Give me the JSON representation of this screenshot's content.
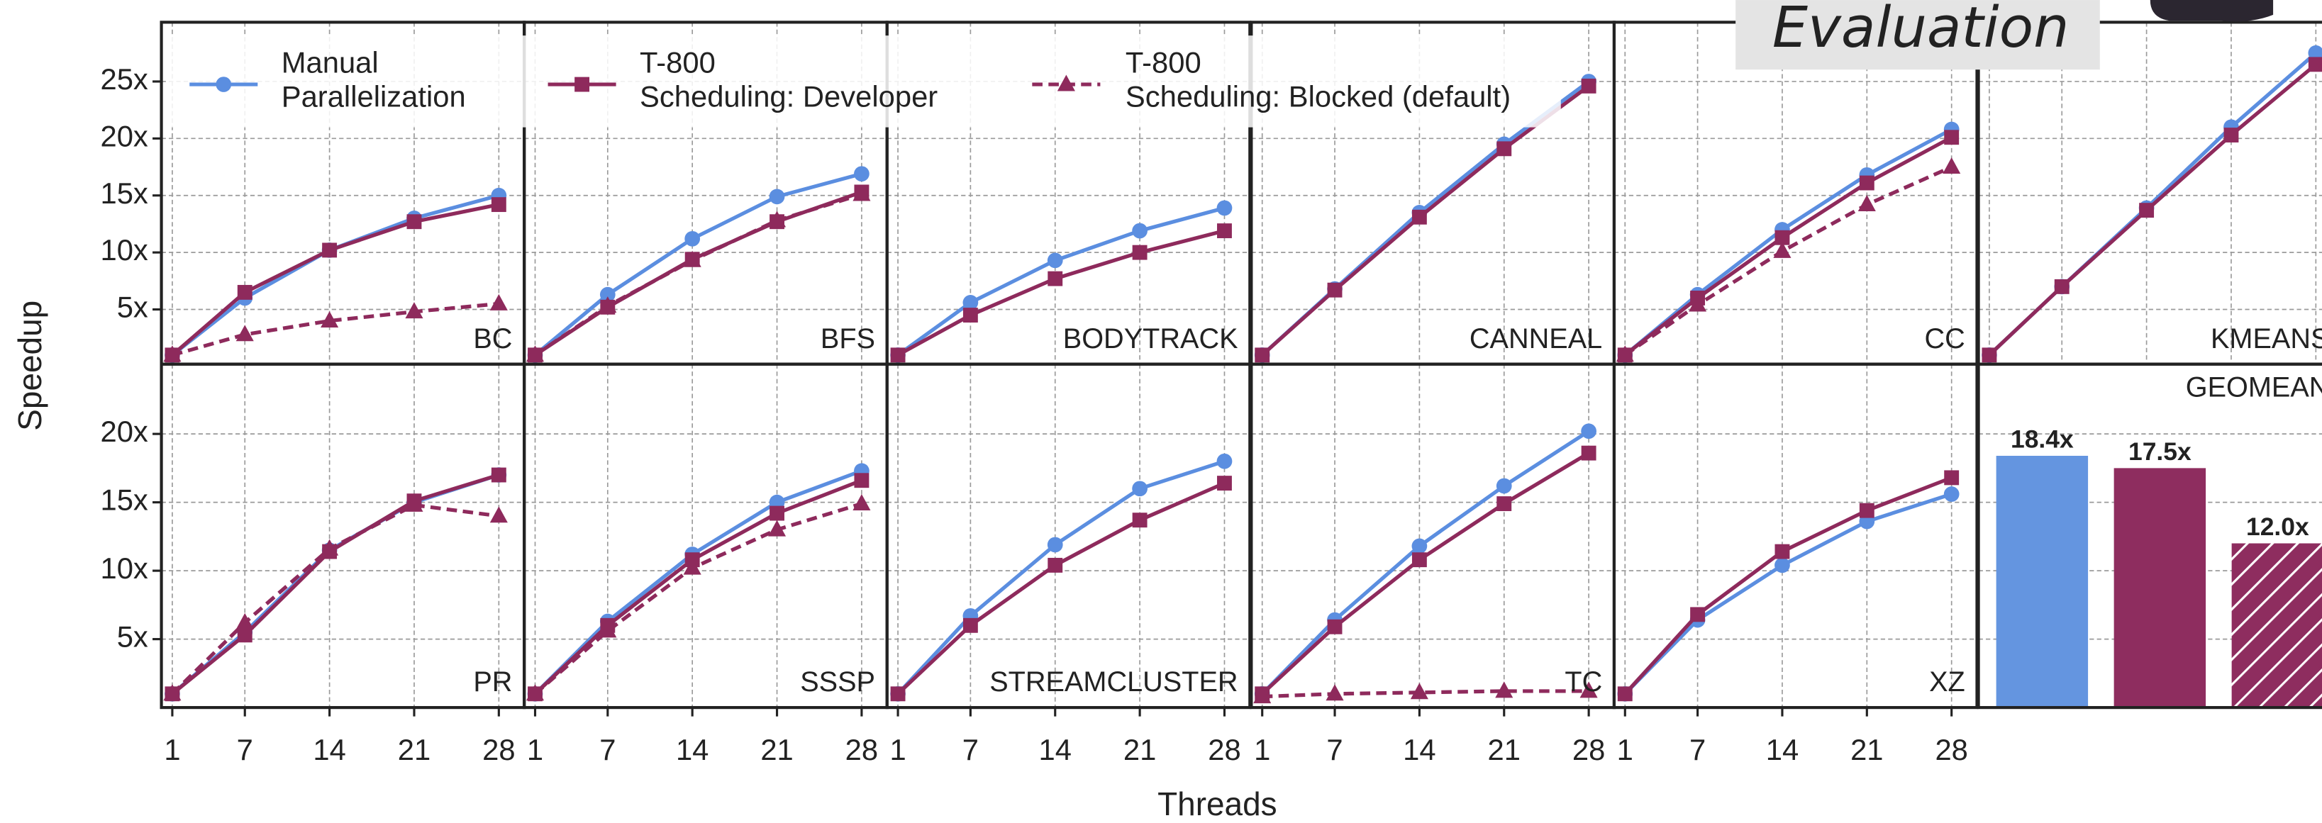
{
  "overlay_title": "Evaluation",
  "ylabel": "Speedup",
  "xlabel": "Threads",
  "chart_data": [
    {
      "type": "line",
      "title": "BC",
      "x": [
        1,
        7,
        14,
        21,
        28
      ],
      "xlim": [
        0.1,
        30.1
      ],
      "ylim": [
        0.2,
        30.2
      ],
      "xticks": [
        1,
        7,
        14,
        21,
        28
      ],
      "yticks": [
        {
          "value": 5,
          "label": "5x"
        },
        {
          "value": 10,
          "label": "10x"
        },
        {
          "value": 15,
          "label": "15x"
        },
        {
          "value": 20,
          "label": "20x"
        },
        {
          "value": 25,
          "label": "25x"
        }
      ],
      "grid": true,
      "series": [
        {
          "name": "Manual\nParallelization",
          "color": "#5b8ee0",
          "marker": "circle",
          "linestyle": "solid",
          "values": [
            1,
            6,
            10.2,
            13,
            15
          ]
        },
        {
          "name": "T-800\nScheduling: Developer",
          "color": "#8e2a5c",
          "marker": "square",
          "linestyle": "solid",
          "values": [
            1,
            6.5,
            10.2,
            12.7,
            14.2
          ]
        },
        {
          "name": "T-800\nScheduling: Blocked (default)",
          "color": "#8e2a5c",
          "marker": "triangle",
          "linestyle": "dashed",
          "values": [
            1,
            2.8,
            4,
            4.8,
            5.5
          ]
        }
      ]
    },
    {
      "type": "line",
      "title": "BFS",
      "x": [
        1,
        7,
        14,
        21,
        28
      ],
      "xlim": [
        0.1,
        30.1
      ],
      "ylim": [
        0.2,
        30.2
      ],
      "xticks": [
        1,
        7,
        14,
        21,
        28
      ],
      "yticks": [
        5,
        10,
        15,
        20,
        25
      ],
      "grid": true,
      "series": [
        {
          "name": "Manual\nParallelization",
          "color": "#5b8ee0",
          "marker": "circle",
          "linestyle": "solid",
          "values": [
            1,
            6.3,
            11.2,
            14.9,
            16.9
          ]
        },
        {
          "name": "T-800\nScheduling: Developer",
          "color": "#8e2a5c",
          "marker": "square",
          "linestyle": "solid",
          "values": [
            1,
            5.2,
            9.4,
            12.7,
            15.3
          ]
        },
        {
          "name": "T-800\nScheduling: Blocked (default)",
          "color": "#8e2a5c",
          "marker": "triangle",
          "linestyle": "dashed",
          "values": [
            1,
            5.3,
            9.3,
            12.8,
            15.1
          ]
        }
      ]
    },
    {
      "type": "line",
      "title": "BODYTRACK",
      "x": [
        1,
        7,
        14,
        21,
        28
      ],
      "xlim": [
        0.1,
        30.1
      ],
      "ylim": [
        0.2,
        30.2
      ],
      "xticks": [
        1,
        7,
        14,
        21,
        28
      ],
      "yticks": [
        5,
        10,
        15,
        20,
        25
      ],
      "grid": true,
      "series": [
        {
          "name": "Manual\nParallelization",
          "color": "#5b8ee0",
          "marker": "circle",
          "linestyle": "solid",
          "values": [
            1,
            5.6,
            9.3,
            11.9,
            13.9
          ]
        },
        {
          "name": "T-800\nScheduling: Developer",
          "color": "#8e2a5c",
          "marker": "square",
          "linestyle": "solid",
          "values": [
            1,
            4.5,
            7.7,
            10,
            11.9
          ]
        }
      ]
    },
    {
      "type": "line",
      "title": "CANNEAL",
      "x": [
        1,
        7,
        14,
        21,
        28
      ],
      "xlim": [
        0.1,
        30.1
      ],
      "ylim": [
        0.2,
        30.2
      ],
      "xticks": [
        1,
        7,
        14,
        21,
        28
      ],
      "yticks": [
        5,
        10,
        15,
        20,
        25
      ],
      "grid": true,
      "series": [
        {
          "name": "Manual\nParallelization",
          "color": "#5b8ee0",
          "marker": "circle",
          "linestyle": "solid",
          "values": [
            1,
            6.8,
            13.5,
            19.5,
            25
          ]
        },
        {
          "name": "T-800\nScheduling: Developer",
          "color": "#8e2a5c",
          "marker": "square",
          "linestyle": "solid",
          "values": [
            1,
            6.7,
            13.1,
            19.1,
            24.6
          ]
        }
      ]
    },
    {
      "type": "line",
      "title": "CC",
      "x": [
        1,
        7,
        14,
        21,
        28
      ],
      "xlim": [
        0.1,
        30.1
      ],
      "ylim": [
        0.2,
        30.2
      ],
      "xticks": [
        1,
        7,
        14,
        21,
        28
      ],
      "yticks": [
        5,
        10,
        15,
        20,
        25
      ],
      "grid": true,
      "series": [
        {
          "name": "Manual\nParallelization",
          "color": "#5b8ee0",
          "marker": "circle",
          "linestyle": "solid",
          "values": [
            1,
            6.3,
            12,
            16.8,
            20.8
          ]
        },
        {
          "name": "T-800\nScheduling: Developer",
          "color": "#8e2a5c",
          "marker": "square",
          "linestyle": "solid",
          "values": [
            1,
            6,
            11.3,
            16.1,
            20.1
          ]
        },
        {
          "name": "T-800\nScheduling: Blocked (default)",
          "color": "#8e2a5c",
          "marker": "triangle",
          "linestyle": "dashed",
          "values": [
            1,
            5.4,
            10.1,
            14.2,
            17.5
          ]
        }
      ]
    },
    {
      "type": "line",
      "title": "KMEANS",
      "x": [
        1,
        7,
        14,
        21,
        28
      ],
      "xlim": [
        0.1,
        30.1
      ],
      "ylim": [
        0.2,
        30.2
      ],
      "xticks": [
        1,
        7,
        14,
        21,
        28
      ],
      "yticks": [
        5,
        10,
        15,
        20,
        25
      ],
      "grid": true,
      "series": [
        {
          "name": "Manual\nParallelization",
          "color": "#5b8ee0",
          "marker": "circle",
          "linestyle": "solid",
          "values": [
            1,
            7,
            13.9,
            21,
            27.5
          ]
        },
        {
          "name": "T-800\nScheduling: Developer",
          "color": "#8e2a5c",
          "marker": "square",
          "linestyle": "solid",
          "values": [
            1,
            7,
            13.7,
            20.3,
            26.5
          ]
        }
      ]
    },
    {
      "type": "line",
      "title": "PR",
      "x": [
        1,
        7,
        14,
        21,
        28
      ],
      "xlim": [
        0.1,
        30.1
      ],
      "ylim": [
        0,
        25.1
      ],
      "xticks": [
        1,
        7,
        14,
        21,
        28
      ],
      "yticks": [
        {
          "value": 5,
          "label": "5x"
        },
        {
          "value": 10,
          "label": "10x"
        },
        {
          "value": 15,
          "label": "15x"
        },
        {
          "value": 20,
          "label": "20x"
        }
      ],
      "grid": true,
      "series": [
        {
          "name": "Manual\nParallelization",
          "color": "#5b8ee0",
          "marker": "circle",
          "linestyle": "solid",
          "values": [
            1,
            5.5,
            11.5,
            15,
            17
          ]
        },
        {
          "name": "T-800\nScheduling: Developer",
          "color": "#8e2a5c",
          "marker": "square",
          "linestyle": "solid",
          "values": [
            1,
            5.3,
            11.4,
            15.1,
            17
          ]
        },
        {
          "name": "T-800\nScheduling: Blocked (default)",
          "color": "#8e2a5c",
          "marker": "triangle",
          "linestyle": "dashed",
          "values": [
            1,
            6.2,
            11.6,
            14.8,
            14
          ]
        }
      ]
    },
    {
      "type": "line",
      "title": "SSSP",
      "x": [
        1,
        7,
        14,
        21,
        28
      ],
      "xlim": [
        0.1,
        30.1
      ],
      "ylim": [
        0,
        25.1
      ],
      "xticks": [
        1,
        7,
        14,
        21,
        28
      ],
      "yticks": [
        5,
        10,
        15,
        20
      ],
      "grid": true,
      "series": [
        {
          "name": "Manual\nParallelization",
          "color": "#5b8ee0",
          "marker": "circle",
          "linestyle": "solid",
          "values": [
            1,
            6.3,
            11.2,
            15,
            17.3
          ]
        },
        {
          "name": "T-800\nScheduling: Developer",
          "color": "#8e2a5c",
          "marker": "square",
          "linestyle": "solid",
          "values": [
            1,
            6,
            10.8,
            14.2,
            16.6
          ]
        },
        {
          "name": "T-800\nScheduling: Blocked (default)",
          "color": "#8e2a5c",
          "marker": "triangle",
          "linestyle": "dashed",
          "values": [
            1,
            5.6,
            10.2,
            13,
            14.9
          ]
        }
      ]
    },
    {
      "type": "line",
      "title": "STREAMCLUSTER",
      "x": [
        1,
        7,
        14,
        21,
        28
      ],
      "xlim": [
        0.1,
        30.1
      ],
      "ylim": [
        0,
        25.1
      ],
      "xticks": [
        1,
        7,
        14,
        21,
        28
      ],
      "yticks": [
        5,
        10,
        15,
        20
      ],
      "grid": true,
      "series": [
        {
          "name": "Manual\nParallelization",
          "color": "#5b8ee0",
          "marker": "circle",
          "linestyle": "solid",
          "values": [
            1,
            6.7,
            11.9,
            16,
            18
          ]
        },
        {
          "name": "T-800\nScheduling: Developer",
          "color": "#8e2a5c",
          "marker": "square",
          "linestyle": "solid",
          "values": [
            1,
            6,
            10.4,
            13.7,
            16.4
          ]
        }
      ]
    },
    {
      "type": "line",
      "title": "TC",
      "x": [
        1,
        7,
        14,
        21,
        28
      ],
      "xlim": [
        0.1,
        30.1
      ],
      "ylim": [
        0,
        25.1
      ],
      "xticks": [
        1,
        7,
        14,
        21,
        28
      ],
      "yticks": [
        5,
        10,
        15,
        20
      ],
      "grid": true,
      "series": [
        {
          "name": "Manual\nParallelization",
          "color": "#5b8ee0",
          "marker": "circle",
          "linestyle": "solid",
          "values": [
            1,
            6.4,
            11.8,
            16.2,
            20.2
          ]
        },
        {
          "name": "T-800\nScheduling: Developer",
          "color": "#8e2a5c",
          "marker": "square",
          "linestyle": "solid",
          "values": [
            1,
            5.9,
            10.8,
            14.9,
            18.6
          ]
        },
        {
          "name": "T-800\nScheduling: Blocked (default)",
          "color": "#8e2a5c",
          "marker": "triangle",
          "linestyle": "dashed",
          "values": [
            0.8,
            1,
            1.1,
            1.2,
            1.2
          ]
        }
      ]
    },
    {
      "type": "line",
      "title": "XZ",
      "x": [
        1,
        7,
        14,
        21,
        28
      ],
      "xlim": [
        0.1,
        30.1
      ],
      "ylim": [
        0,
        25.1
      ],
      "xticks": [
        1,
        7,
        14,
        21,
        28
      ],
      "yticks": [
        5,
        10,
        15,
        20
      ],
      "grid": true,
      "series": [
        {
          "name": "Manual\nParallelization",
          "color": "#5b8ee0",
          "marker": "circle",
          "linestyle": "solid",
          "values": [
            1,
            6.4,
            10.4,
            13.6,
            15.6
          ]
        },
        {
          "name": "T-800\nScheduling: Developer",
          "color": "#8e2a5c",
          "marker": "square",
          "linestyle": "solid",
          "values": [
            1,
            6.8,
            11.4,
            14.4,
            16.8
          ]
        }
      ]
    },
    {
      "type": "bar",
      "title": "GEOMEAN",
      "values": [
        18.4,
        17.5,
        12.0
      ],
      "value_labels": [
        "18.4x",
        "17.5x",
        "12.0x"
      ],
      "colors": [
        "#6495e0",
        "#8e2d5f",
        "#8e2d5f"
      ],
      "hatch": [
        false,
        false,
        true
      ],
      "ylim": [
        0,
        25.1
      ],
      "yticks": [
        5,
        10,
        15,
        20
      ],
      "grid": true
    }
  ]
}
